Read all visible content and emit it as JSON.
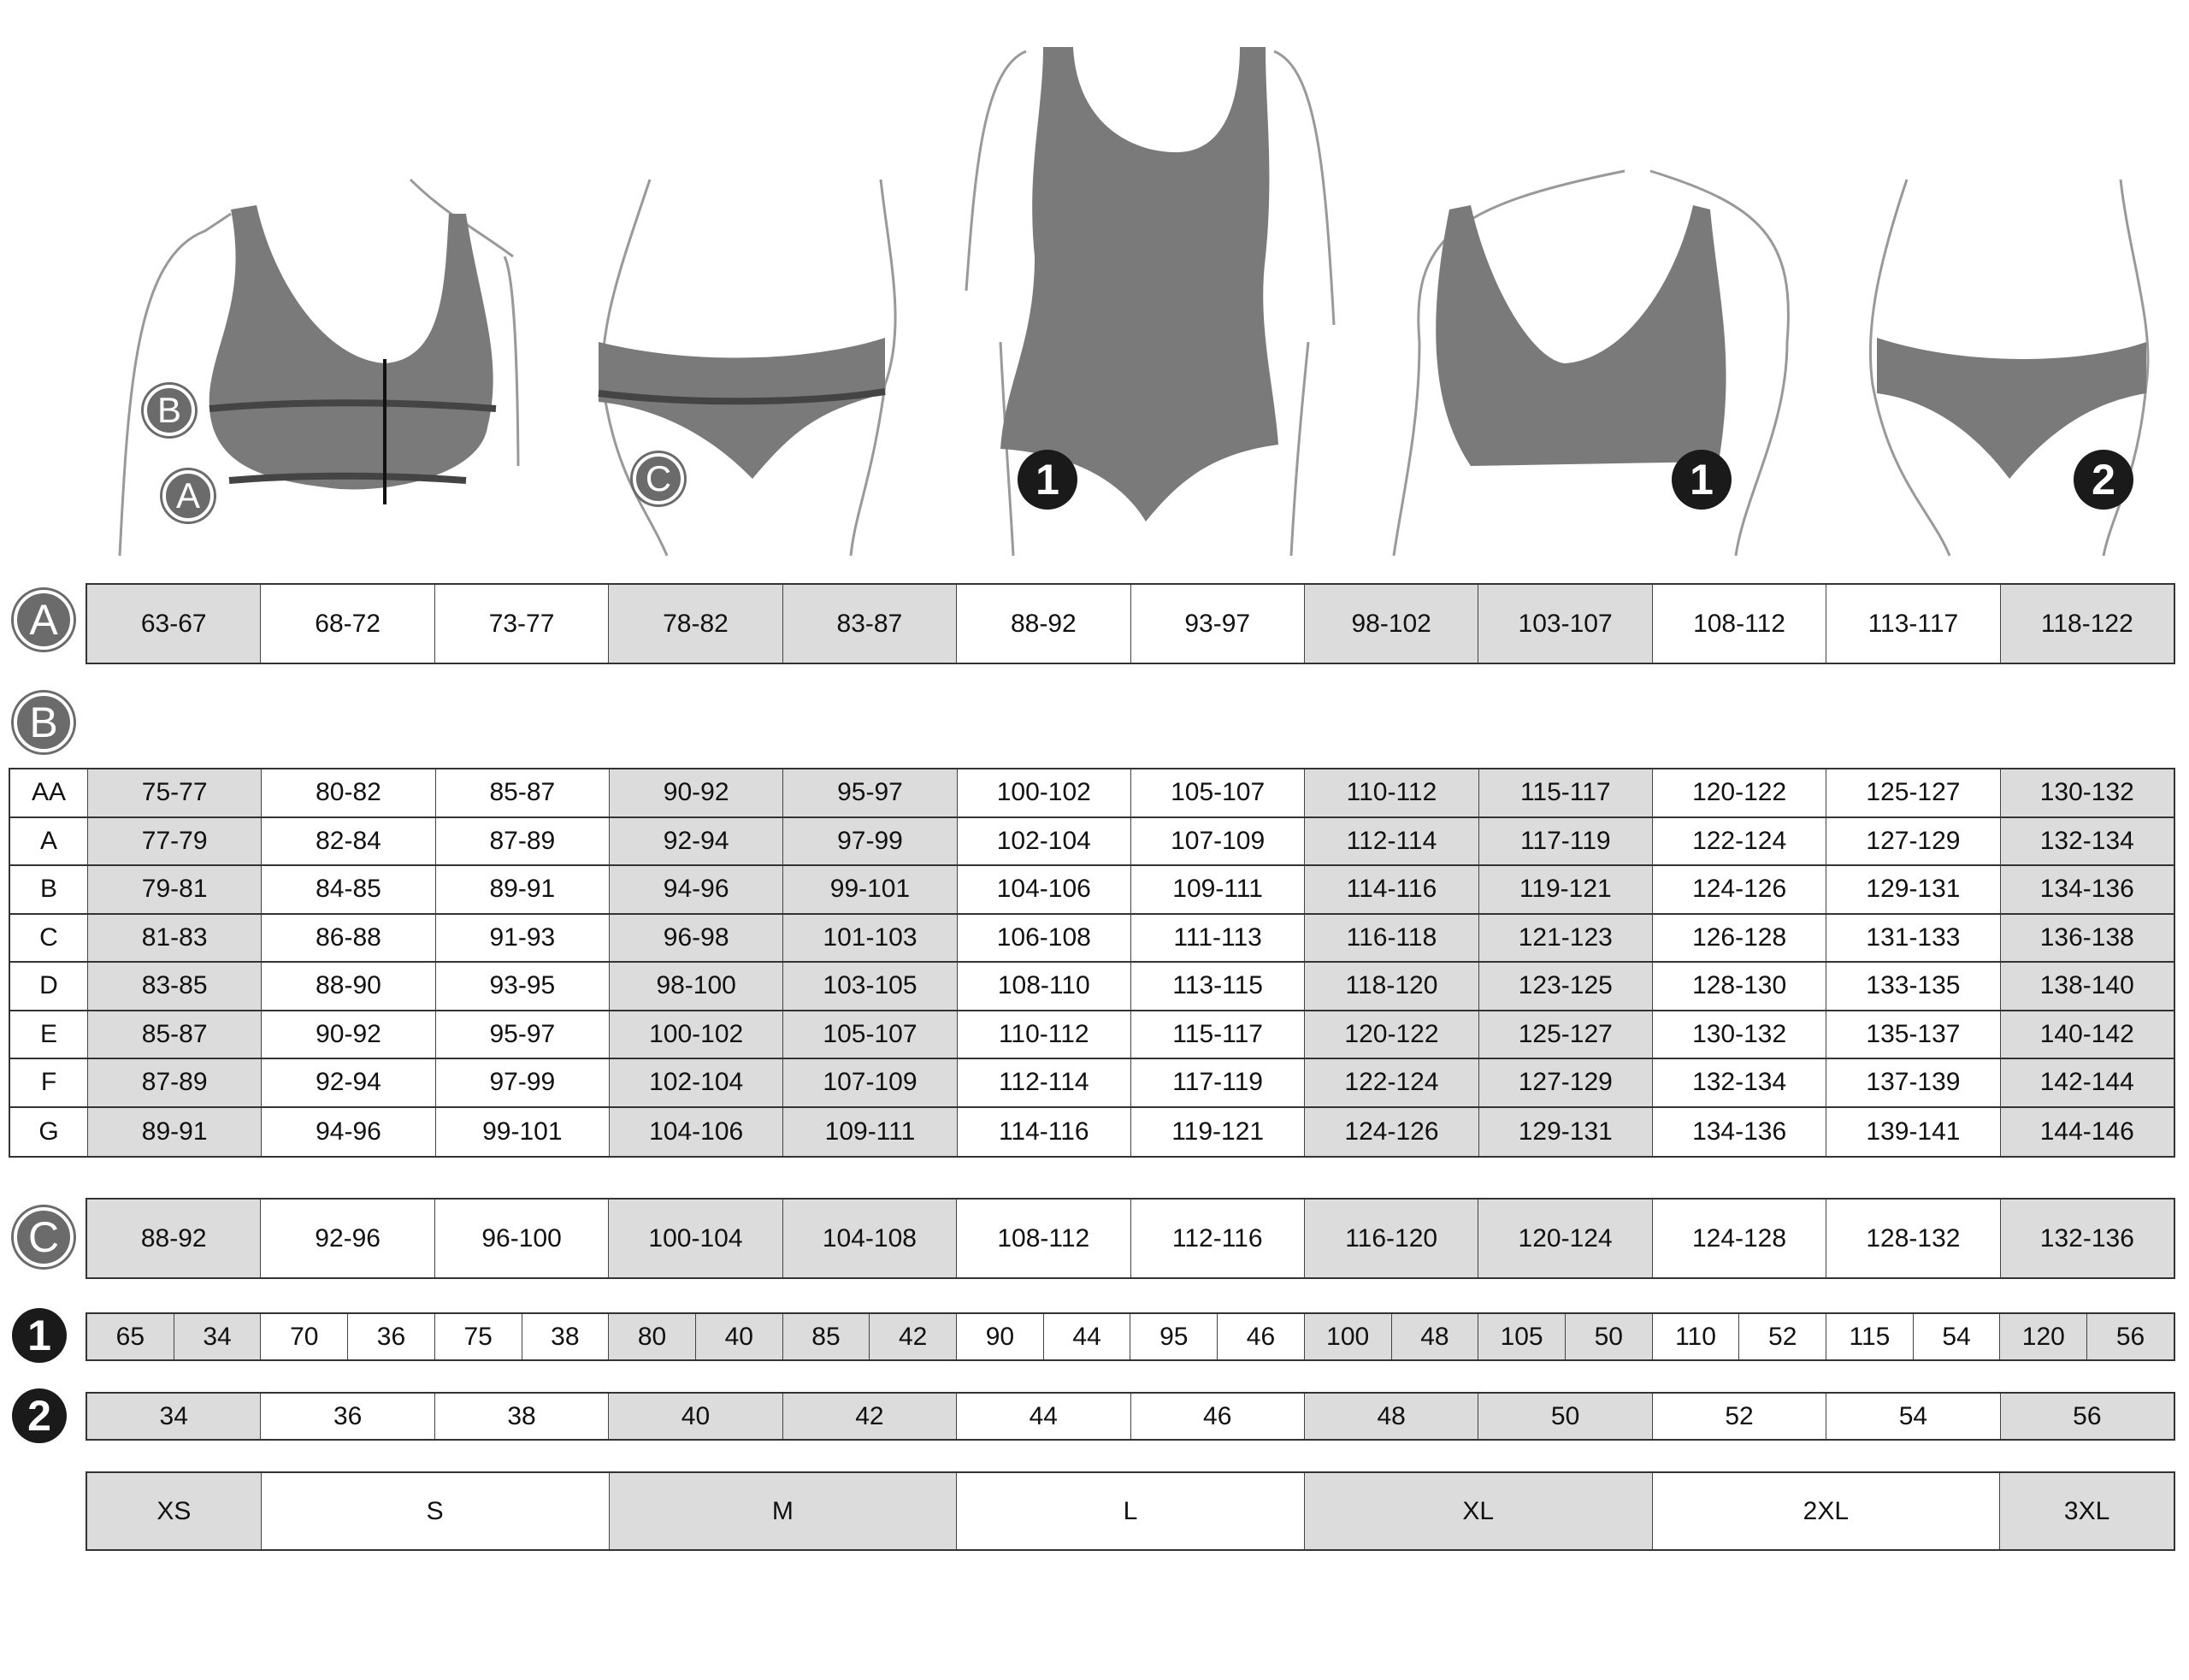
{
  "colors": {
    "shade": "#dcdcdc",
    "garment": "#7a7a7a",
    "badge_gray": "#6b6b6b",
    "badge_black": "#1a1a1a"
  },
  "shaded_columns": [
    0,
    3,
    4,
    7,
    8,
    11
  ],
  "illustrations": {
    "bra_measure": {
      "badges": [
        "B",
        "A"
      ]
    },
    "brief_measure": {
      "badges": [
        "C"
      ]
    },
    "swimsuit": {
      "badges": [
        "1"
      ]
    },
    "bra": {
      "badges": [
        "1"
      ]
    },
    "brief": {
      "badges": [
        "2"
      ]
    }
  },
  "table_a": {
    "badge": "A",
    "values": [
      "63-67",
      "68-72",
      "73-77",
      "78-82",
      "83-87",
      "88-92",
      "93-97",
      "98-102",
      "103-107",
      "108-112",
      "113-117",
      "118-122"
    ]
  },
  "table_b": {
    "badge": "B",
    "rows": [
      {
        "cup": "AA",
        "values": [
          "75-77",
          "80-82",
          "85-87",
          "90-92",
          "95-97",
          "100-102",
          "105-107",
          "110-112",
          "115-117",
          "120-122",
          "125-127",
          "130-132"
        ]
      },
      {
        "cup": "A",
        "values": [
          "77-79",
          "82-84",
          "87-89",
          "92-94",
          "97-99",
          "102-104",
          "107-109",
          "112-114",
          "117-119",
          "122-124",
          "127-129",
          "132-134"
        ]
      },
      {
        "cup": "B",
        "values": [
          "79-81",
          "84-85",
          "89-91",
          "94-96",
          "99-101",
          "104-106",
          "109-111",
          "114-116",
          "119-121",
          "124-126",
          "129-131",
          "134-136"
        ]
      },
      {
        "cup": "C",
        "values": [
          "81-83",
          "86-88",
          "91-93",
          "96-98",
          "101-103",
          "106-108",
          "111-113",
          "116-118",
          "121-123",
          "126-128",
          "131-133",
          "136-138"
        ]
      },
      {
        "cup": "D",
        "values": [
          "83-85",
          "88-90",
          "93-95",
          "98-100",
          "103-105",
          "108-110",
          "113-115",
          "118-120",
          "123-125",
          "128-130",
          "133-135",
          "138-140"
        ]
      },
      {
        "cup": "E",
        "values": [
          "85-87",
          "90-92",
          "95-97",
          "100-102",
          "105-107",
          "110-112",
          "115-117",
          "120-122",
          "125-127",
          "130-132",
          "135-137",
          "140-142"
        ]
      },
      {
        "cup": "F",
        "values": [
          "87-89",
          "92-94",
          "97-99",
          "102-104",
          "107-109",
          "112-114",
          "117-119",
          "122-124",
          "127-129",
          "132-134",
          "137-139",
          "142-144"
        ]
      },
      {
        "cup": "G",
        "values": [
          "89-91",
          "94-96",
          "99-101",
          "104-106",
          "109-111",
          "114-116",
          "119-121",
          "124-126",
          "129-131",
          "134-136",
          "139-141",
          "144-146"
        ]
      }
    ]
  },
  "table_c": {
    "badge": "C",
    "values": [
      "88-92",
      "92-96",
      "96-100",
      "100-104",
      "104-108",
      "108-112",
      "112-116",
      "116-120",
      "120-124",
      "124-128",
      "128-132",
      "132-136"
    ]
  },
  "table_1": {
    "badge": "1",
    "values": [
      [
        "65",
        "34"
      ],
      [
        "70",
        "36"
      ],
      [
        "75",
        "38"
      ],
      [
        "80",
        "40"
      ],
      [
        "85",
        "42"
      ],
      [
        "90",
        "44"
      ],
      [
        "95",
        "46"
      ],
      [
        "100",
        "48"
      ],
      [
        "105",
        "50"
      ],
      [
        "110",
        "52"
      ],
      [
        "115",
        "54"
      ],
      [
        "120",
        "56"
      ]
    ]
  },
  "table_2": {
    "badge": "2",
    "values": [
      "34",
      "36",
      "38",
      "40",
      "42",
      "44",
      "46",
      "48",
      "50",
      "52",
      "54",
      "56"
    ]
  },
  "sizes": [
    {
      "label": "XS",
      "span": 1,
      "shaded": true
    },
    {
      "label": "S",
      "span": 2,
      "shaded": false
    },
    {
      "label": "M",
      "span": 2,
      "shaded": true
    },
    {
      "label": "L",
      "span": 2,
      "shaded": false
    },
    {
      "label": "XL",
      "span": 2,
      "shaded": true
    },
    {
      "label": "2XL",
      "span": 2,
      "shaded": false
    },
    {
      "label": "3XL",
      "span": 1,
      "shaded": true
    }
  ]
}
